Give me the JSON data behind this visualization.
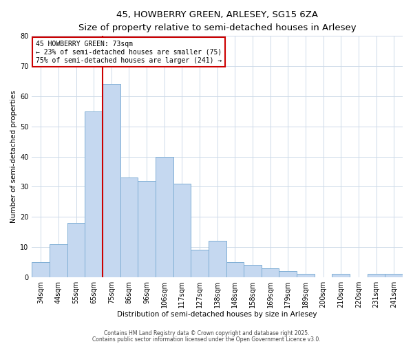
{
  "title": "45, HOWBERRY GREEN, ARLESEY, SG15 6ZA",
  "subtitle": "Size of property relative to semi-detached houses in Arlesey",
  "xlabel": "Distribution of semi-detached houses by size in Arlesey",
  "ylabel": "Number of semi-detached properties",
  "categories": [
    "34sqm",
    "44sqm",
    "55sqm",
    "65sqm",
    "75sqm",
    "86sqm",
    "96sqm",
    "106sqm",
    "117sqm",
    "127sqm",
    "138sqm",
    "148sqm",
    "158sqm",
    "169sqm",
    "179sqm",
    "189sqm",
    "200sqm",
    "210sqm",
    "220sqm",
    "231sqm",
    "241sqm"
  ],
  "values": [
    5,
    11,
    18,
    55,
    64,
    33,
    32,
    40,
    31,
    9,
    12,
    5,
    4,
    3,
    2,
    1,
    0,
    1,
    0,
    1,
    1
  ],
  "bar_color": "#c5d8f0",
  "bar_edge_color": "#7eaed4",
  "red_line_index": 4,
  "annotation_title": "45 HOWBERRY GREEN: 73sqm",
  "annotation_line1": "← 23% of semi-detached houses are smaller (75)",
  "annotation_line2": "75% of semi-detached houses are larger (241) →",
  "annotation_box_edge": "#cc0000",
  "red_line_color": "#cc0000",
  "ylim": [
    0,
    80
  ],
  "yticks": [
    0,
    10,
    20,
    30,
    40,
    50,
    60,
    70,
    80
  ],
  "footer_line1": "Contains HM Land Registry data © Crown copyright and database right 2025.",
  "footer_line2": "Contains public sector information licensed under the Open Government Licence v3.0.",
  "bg_color": "#ffffff",
  "grid_color": "#ccd9e8",
  "title_fontsize": 9.5,
  "subtitle_fontsize": 8,
  "axis_label_fontsize": 7.5,
  "tick_fontsize": 7,
  "annotation_fontsize": 7,
  "footer_fontsize": 5.5
}
